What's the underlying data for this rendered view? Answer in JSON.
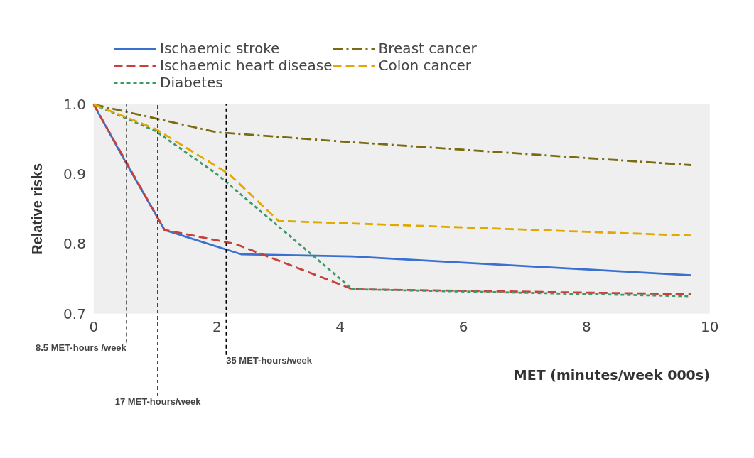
{
  "chart_data": {
    "type": "line",
    "xlabel": "MET (minutes/week 000s)",
    "ylabel": "Relative risks",
    "xlim": [
      0,
      10
    ],
    "ylim": [
      0.7,
      1.0
    ],
    "xticks": [
      0,
      2,
      4,
      6,
      8,
      10
    ],
    "yticks": [
      {
        "value": 0.7,
        "label": "0.7"
      },
      {
        "value": 0.8,
        "label": "0.8"
      },
      {
        "value": 0.9,
        "label": "0.9"
      },
      {
        "value": 1.0,
        "label": "1.0"
      }
    ],
    "grid": false,
    "legend": "top",
    "marker": "none",
    "series": [
      {
        "name": "Ischaemic stroke",
        "color": "#3a70d0",
        "line_style": "solid",
        "x": [
          0,
          0.5,
          1.15,
          2.4,
          4.2,
          9.7
        ],
        "values": [
          1.0,
          0.92,
          0.82,
          0.785,
          0.782,
          0.755
        ]
      },
      {
        "name": "Ischaemic heart disease",
        "color": "#c8403a",
        "line_style": "dashed",
        "x": [
          0,
          1.15,
          2.3,
          4.2,
          9.7
        ],
        "values": [
          1.0,
          0.82,
          0.8,
          0.735,
          0.728
        ]
      },
      {
        "name": "Diabetes",
        "color": "#3a9a6a",
        "line_style": "dotted",
        "x": [
          0,
          1.0,
          2.0,
          4.2,
          9.7
        ],
        "values": [
          1.0,
          0.962,
          0.9,
          0.735,
          0.725
        ]
      },
      {
        "name": "Breast cancer",
        "color": "#7a6a10",
        "line_style": "dashdot",
        "x": [
          0,
          2.0,
          4.0,
          9.7
        ],
        "values": [
          1.0,
          0.96,
          0.947,
          0.913
        ]
      },
      {
        "name": "Colon cancer",
        "color": "#e0a800",
        "line_style": "dashed",
        "x": [
          0,
          1.0,
          2.2,
          3.0,
          4.0,
          9.7
        ],
        "values": [
          1.0,
          0.965,
          0.9,
          0.833,
          0.83,
          0.812
        ]
      }
    ],
    "ref_lines": [
      {
        "axis": "x",
        "value": 0.53,
        "label": "8.5 MET-hours /week",
        "line_style": "dotted",
        "color": "#000000"
      },
      {
        "axis": "x",
        "value": 1.04,
        "label": "17 MET-hours/week",
        "line_style": "dotted",
        "color": "#000000"
      },
      {
        "axis": "x",
        "value": 2.15,
        "label": "35 MET-hours/week",
        "line_style": "dotted",
        "color": "#000000"
      }
    ]
  }
}
